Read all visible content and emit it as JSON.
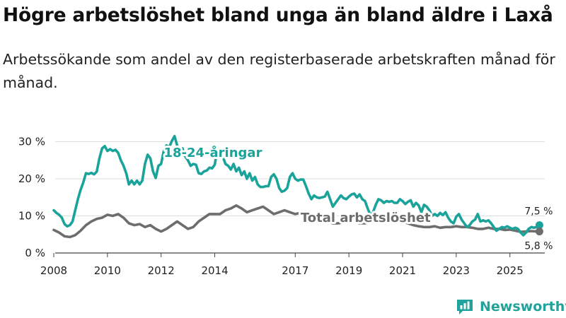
{
  "title": "Högre arbetslöshet bland unga än bland äldre i Laxå",
  "subtitle": "Arbetssökande som andel av den registerbaserade arbetskraften månad för månad.",
  "brand": {
    "name": "Newsworthy",
    "color": "#20a39a"
  },
  "chart_data": {
    "type": "line",
    "title": "Högre arbetslöshet bland unga än bland äldre i Laxå",
    "xlabel": "",
    "ylabel": "",
    "xlim": [
      2008,
      2026.3
    ],
    "ylim": [
      0,
      32
    ],
    "y_ticks": [
      {
        "value": 0,
        "label": "0 %"
      },
      {
        "value": 10,
        "label": "10 %"
      },
      {
        "value": 20,
        "label": "20 %"
      },
      {
        "value": 30,
        "label": "30 %"
      }
    ],
    "x_ticks": [
      {
        "value": 2008,
        "label": "2008"
      },
      {
        "value": 2010,
        "label": "2010"
      },
      {
        "value": 2012,
        "label": "2012"
      },
      {
        "value": 2014,
        "label": "2014"
      },
      {
        "value": 2017,
        "label": "2017"
      },
      {
        "value": 2019,
        "label": "2019"
      },
      {
        "value": 2021,
        "label": "2021"
      },
      {
        "value": 2023,
        "label": "2023"
      },
      {
        "value": 2025,
        "label": "2025"
      }
    ],
    "grid": true,
    "series": [
      {
        "name": "18-24-åringar",
        "color": "#1aa39a",
        "points": [
          [
            2008.0,
            11.5
          ],
          [
            2008.1,
            10.8
          ],
          [
            2008.2,
            10.3
          ],
          [
            2008.3,
            9.5
          ],
          [
            2008.4,
            7.8
          ],
          [
            2008.5,
            7.2
          ],
          [
            2008.6,
            7.5
          ],
          [
            2008.7,
            8.5
          ],
          [
            2008.8,
            11.5
          ],
          [
            2008.9,
            14.5
          ],
          [
            2009.0,
            17.0
          ],
          [
            2009.1,
            19.0
          ],
          [
            2009.2,
            21.5
          ],
          [
            2009.3,
            21.3
          ],
          [
            2009.4,
            21.6
          ],
          [
            2009.5,
            21.2
          ],
          [
            2009.6,
            21.9
          ],
          [
            2009.7,
            25.5
          ],
          [
            2009.8,
            28.2
          ],
          [
            2009.9,
            28.8
          ],
          [
            2010.0,
            27.5
          ],
          [
            2010.1,
            28.0
          ],
          [
            2010.2,
            27.5
          ],
          [
            2010.3,
            27.8
          ],
          [
            2010.4,
            27.0
          ],
          [
            2010.5,
            25.0
          ],
          [
            2010.6,
            23.5
          ],
          [
            2010.7,
            21.5
          ],
          [
            2010.8,
            18.5
          ],
          [
            2010.9,
            19.5
          ],
          [
            2011.0,
            18.5
          ],
          [
            2011.1,
            19.5
          ],
          [
            2011.2,
            18.5
          ],
          [
            2011.3,
            19.5
          ],
          [
            2011.4,
            24.0
          ],
          [
            2011.5,
            26.5
          ],
          [
            2011.6,
            25.5
          ],
          [
            2011.7,
            22.0
          ],
          [
            2011.8,
            20.2
          ],
          [
            2011.9,
            23.5
          ],
          [
            2012.0,
            24.0
          ],
          [
            2012.1,
            27.5
          ],
          [
            2012.2,
            29.0
          ],
          [
            2012.3,
            28.5
          ],
          [
            2012.4,
            30.2
          ],
          [
            2012.5,
            31.5
          ],
          [
            2012.6,
            29.0
          ],
          [
            2012.7,
            27.5
          ],
          [
            2012.8,
            28.2
          ],
          [
            2012.9,
            26.0
          ],
          [
            2013.0,
            25.0
          ],
          [
            2013.1,
            23.5
          ],
          [
            2013.2,
            24.0
          ],
          [
            2013.3,
            23.8
          ],
          [
            2013.4,
            21.5
          ],
          [
            2013.5,
            21.3
          ],
          [
            2013.6,
            22.0
          ],
          [
            2013.7,
            22.2
          ],
          [
            2013.8,
            23.0
          ],
          [
            2013.9,
            22.8
          ],
          [
            2014.0,
            23.8
          ],
          [
            2014.1,
            28.0
          ],
          [
            2014.2,
            27.0
          ],
          [
            2014.3,
            26.0
          ],
          [
            2014.4,
            24.0
          ],
          [
            2014.5,
            23.5
          ],
          [
            2014.6,
            22.5
          ],
          [
            2014.7,
            24.0
          ],
          [
            2014.8,
            22.0
          ],
          [
            2014.9,
            23.0
          ],
          [
            2015.0,
            21.0
          ],
          [
            2015.1,
            22.0
          ],
          [
            2015.2,
            20.0
          ],
          [
            2015.3,
            21.5
          ],
          [
            2015.4,
            19.5
          ],
          [
            2015.5,
            20.5
          ],
          [
            2015.6,
            18.5
          ],
          [
            2015.7,
            17.8
          ],
          [
            2015.8,
            17.8
          ],
          [
            2015.9,
            18.0
          ],
          [
            2016.0,
            18.0
          ],
          [
            2016.1,
            20.5
          ],
          [
            2016.2,
            21.2
          ],
          [
            2016.3,
            20.0
          ],
          [
            2016.4,
            17.5
          ],
          [
            2016.5,
            16.5
          ],
          [
            2016.6,
            16.8
          ],
          [
            2016.7,
            17.5
          ],
          [
            2016.8,
            20.5
          ],
          [
            2016.9,
            21.5
          ],
          [
            2017.0,
            20.0
          ],
          [
            2017.1,
            19.5
          ],
          [
            2017.2,
            19.8
          ],
          [
            2017.3,
            19.8
          ],
          [
            2017.4,
            18.0
          ],
          [
            2017.5,
            16.0
          ],
          [
            2017.6,
            14.5
          ],
          [
            2017.7,
            15.5
          ],
          [
            2017.8,
            15.0
          ],
          [
            2017.9,
            14.8
          ],
          [
            2018.0,
            15.0
          ],
          [
            2018.1,
            15.2
          ],
          [
            2018.2,
            16.5
          ],
          [
            2018.3,
            14.5
          ],
          [
            2018.4,
            12.5
          ],
          [
            2018.5,
            13.5
          ],
          [
            2018.6,
            14.5
          ],
          [
            2018.7,
            15.5
          ],
          [
            2018.8,
            14.8
          ],
          [
            2018.9,
            14.5
          ],
          [
            2019.0,
            15.2
          ],
          [
            2019.1,
            15.8
          ],
          [
            2019.2,
            16.0
          ],
          [
            2019.3,
            15.0
          ],
          [
            2019.4,
            15.8
          ],
          [
            2019.5,
            14.5
          ],
          [
            2019.6,
            14.0
          ],
          [
            2019.7,
            12.0
          ],
          [
            2019.8,
            10.2
          ],
          [
            2019.9,
            11.0
          ],
          [
            2020.0,
            13.0
          ],
          [
            2020.1,
            14.5
          ],
          [
            2020.2,
            14.2
          ],
          [
            2020.3,
            13.5
          ],
          [
            2020.4,
            14.0
          ],
          [
            2020.5,
            13.8
          ],
          [
            2020.6,
            14.0
          ],
          [
            2020.7,
            13.5
          ],
          [
            2020.8,
            13.5
          ],
          [
            2020.9,
            14.5
          ],
          [
            2021.0,
            14.0
          ],
          [
            2021.1,
            13.2
          ],
          [
            2021.2,
            13.8
          ],
          [
            2021.3,
            14.2
          ],
          [
            2021.4,
            12.5
          ],
          [
            2021.5,
            13.5
          ],
          [
            2021.6,
            12.8
          ],
          [
            2021.7,
            11.0
          ],
          [
            2021.8,
            13.0
          ],
          [
            2021.9,
            12.5
          ],
          [
            2022.0,
            11.5
          ],
          [
            2022.1,
            10.0
          ],
          [
            2022.2,
            10.5
          ],
          [
            2022.3,
            10.0
          ],
          [
            2022.4,
            10.8
          ],
          [
            2022.5,
            10.2
          ],
          [
            2022.6,
            11.0
          ],
          [
            2022.7,
            9.5
          ],
          [
            2022.8,
            8.5
          ],
          [
            2022.9,
            8.0
          ],
          [
            2023.0,
            9.8
          ],
          [
            2023.1,
            10.5
          ],
          [
            2023.2,
            9.0
          ],
          [
            2023.3,
            8.0
          ],
          [
            2023.4,
            7.0
          ],
          [
            2023.5,
            7.5
          ],
          [
            2023.6,
            8.5
          ],
          [
            2023.7,
            9.0
          ],
          [
            2023.8,
            10.5
          ],
          [
            2023.9,
            8.5
          ],
          [
            2024.0,
            8.8
          ],
          [
            2024.1,
            8.5
          ],
          [
            2024.2,
            8.8
          ],
          [
            2024.3,
            8.0
          ],
          [
            2024.4,
            7.0
          ],
          [
            2024.5,
            6.0
          ],
          [
            2024.6,
            6.5
          ],
          [
            2024.7,
            7.0
          ],
          [
            2024.8,
            6.8
          ],
          [
            2024.9,
            7.2
          ],
          [
            2025.0,
            6.8
          ],
          [
            2025.1,
            6.5
          ],
          [
            2025.2,
            6.8
          ],
          [
            2025.3,
            6.5
          ],
          [
            2025.4,
            5.5
          ],
          [
            2025.5,
            4.8
          ],
          [
            2025.6,
            5.5
          ],
          [
            2025.7,
            6.5
          ],
          [
            2025.8,
            7.0
          ],
          [
            2025.9,
            6.8
          ],
          [
            2026.0,
            7.0
          ],
          [
            2026.1,
            7.5
          ]
        ],
        "label": {
          "text": "18-24-åringar",
          "x": 2012.1,
          "y": 25.9
        },
        "end_value": 7.5,
        "end_label": "7,5 %"
      },
      {
        "name": "Total arbetslöshet",
        "color": "#6d6d6d",
        "points": [
          [
            2008.0,
            6.2
          ],
          [
            2008.2,
            5.5
          ],
          [
            2008.4,
            4.5
          ],
          [
            2008.6,
            4.3
          ],
          [
            2008.8,
            4.8
          ],
          [
            2009.0,
            6.0
          ],
          [
            2009.2,
            7.5
          ],
          [
            2009.4,
            8.5
          ],
          [
            2009.6,
            9.2
          ],
          [
            2009.8,
            9.5
          ],
          [
            2010.0,
            10.3
          ],
          [
            2010.2,
            10.0
          ],
          [
            2010.4,
            10.5
          ],
          [
            2010.6,
            9.5
          ],
          [
            2010.8,
            8.0
          ],
          [
            2011.0,
            7.5
          ],
          [
            2011.2,
            7.8
          ],
          [
            2011.4,
            7.0
          ],
          [
            2011.6,
            7.5
          ],
          [
            2011.8,
            6.5
          ],
          [
            2012.0,
            5.8
          ],
          [
            2012.2,
            6.5
          ],
          [
            2012.4,
            7.5
          ],
          [
            2012.6,
            8.5
          ],
          [
            2012.8,
            7.5
          ],
          [
            2013.0,
            6.5
          ],
          [
            2013.2,
            7.0
          ],
          [
            2013.4,
            8.5
          ],
          [
            2013.6,
            9.5
          ],
          [
            2013.8,
            10.5
          ],
          [
            2014.0,
            10.5
          ],
          [
            2014.2,
            10.5
          ],
          [
            2014.4,
            11.5
          ],
          [
            2014.6,
            12.0
          ],
          [
            2014.8,
            12.8
          ],
          [
            2015.0,
            12.0
          ],
          [
            2015.2,
            11.0
          ],
          [
            2015.4,
            11.5
          ],
          [
            2015.6,
            12.0
          ],
          [
            2015.8,
            12.5
          ],
          [
            2016.0,
            11.5
          ],
          [
            2016.2,
            10.5
          ],
          [
            2016.4,
            11.0
          ],
          [
            2016.6,
            11.5
          ],
          [
            2016.8,
            11.0
          ],
          [
            2017.0,
            10.5
          ],
          [
            2017.2,
            10.8
          ],
          [
            2017.4,
            10.8
          ],
          [
            2017.6,
            10.2
          ],
          [
            2017.8,
            9.5
          ],
          [
            2018.0,
            9.0
          ],
          [
            2018.2,
            8.5
          ],
          [
            2018.4,
            8.0
          ],
          [
            2018.6,
            8.0
          ],
          [
            2018.8,
            8.2
          ],
          [
            2019.0,
            8.5
          ],
          [
            2019.2,
            8.5
          ],
          [
            2019.4,
            8.0
          ],
          [
            2019.6,
            8.0
          ],
          [
            2019.8,
            8.5
          ],
          [
            2020.0,
            9.5
          ],
          [
            2020.2,
            9.0
          ],
          [
            2020.4,
            8.8
          ],
          [
            2020.6,
            8.5
          ],
          [
            2020.8,
            8.8
          ],
          [
            2021.0,
            8.5
          ],
          [
            2021.2,
            8.0
          ],
          [
            2021.4,
            7.5
          ],
          [
            2021.6,
            7.2
          ],
          [
            2021.8,
            7.0
          ],
          [
            2022.0,
            7.0
          ],
          [
            2022.2,
            7.2
          ],
          [
            2022.4,
            6.8
          ],
          [
            2022.6,
            7.0
          ],
          [
            2022.8,
            7.0
          ],
          [
            2023.0,
            7.2
          ],
          [
            2023.2,
            7.0
          ],
          [
            2023.4,
            7.0
          ],
          [
            2023.6,
            6.8
          ],
          [
            2023.8,
            6.5
          ],
          [
            2024.0,
            6.5
          ],
          [
            2024.2,
            6.8
          ],
          [
            2024.4,
            6.5
          ],
          [
            2024.6,
            6.5
          ],
          [
            2024.8,
            6.2
          ],
          [
            2025.0,
            6.3
          ],
          [
            2025.2,
            6.0
          ],
          [
            2025.4,
            5.7
          ],
          [
            2025.6,
            5.8
          ],
          [
            2025.8,
            5.9
          ],
          [
            2026.0,
            5.8
          ],
          [
            2026.1,
            5.8
          ]
        ],
        "label": {
          "text": "Total arbetslöshet",
          "x": 2017.2,
          "y": 8.4
        },
        "end_value": 5.8,
        "end_label": "5,8 %"
      }
    ]
  }
}
